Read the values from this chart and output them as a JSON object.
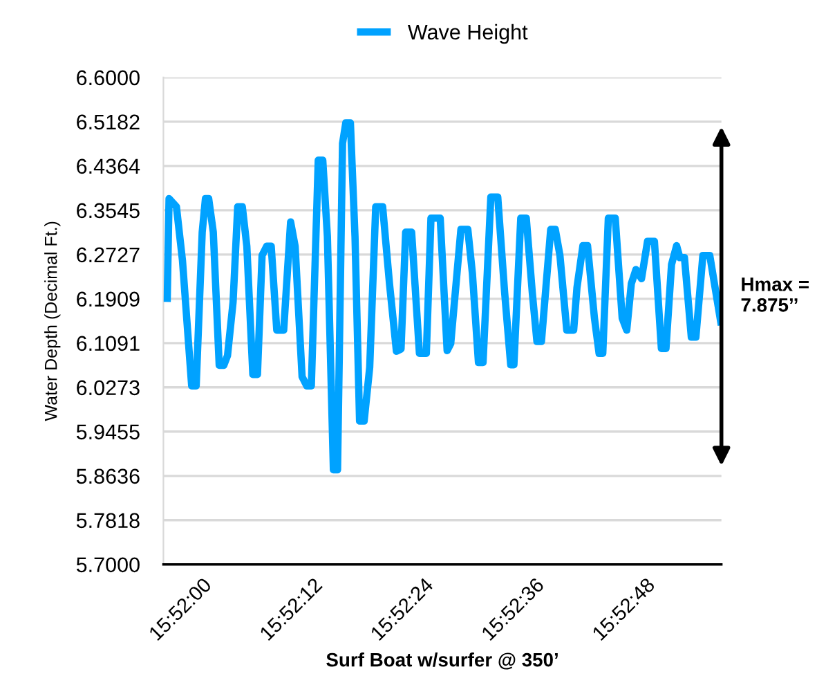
{
  "chart_data": {
    "type": "line",
    "xlabel": "Surf Boat w/surfer @ 350’",
    "ylabel": "Water Depth (Decimal Ft.)",
    "xlim": [
      15.8655,
      15.882278
    ],
    "xticks": [
      {
        "value": 15.866667,
        "label": "15:52:00"
      },
      {
        "value": 15.87,
        "label": "15:52:12"
      },
      {
        "value": 15.873333,
        "label": "15:52:24"
      },
      {
        "value": 15.876667,
        "label": "15:52:36"
      },
      {
        "value": 15.88,
        "label": "15:52:48"
      }
    ],
    "ylim": [
      5.7,
      6.6
    ],
    "yticks": [
      {
        "value": 5.7,
        "label": "5.7000"
      },
      5.7818,
      5.8636,
      5.9455,
      6.0273,
      6.1091,
      6.1909,
      6.2727,
      6.3545,
      6.4364,
      6.5182,
      {
        "value": 6.6,
        "label": "6.6000"
      }
    ],
    "grid": "y",
    "legend": "top",
    "marker": "none",
    "line_style": "solid",
    "annotations": [
      "Hmax =\n7.875’’"
    ],
    "series": [
      {
        "name": "Wave Height",
        "color": "#00a2ff",
        "x": [
          15.865614,
          15.86567,
          15.865892,
          15.866073,
          15.86635,
          15.866486,
          15.866667,
          15.866764,
          15.866861,
          15.867,
          15.867178,
          15.867317,
          15.867428,
          15.867595,
          15.867734,
          15.867873,
          15.868009,
          15.868189,
          15.868328,
          15.868467,
          15.868606,
          15.868742,
          15.868909,
          15.869117,
          15.869325,
          15.869461,
          15.86967,
          15.869809,
          15.869948,
          15.870156,
          15.870292,
          15.870431,
          15.870611,
          15.870736,
          15.870886,
          15.870984,
          15.871123,
          15.871261,
          15.871398,
          15.871536,
          15.871703,
          15.871884,
          15.872092,
          15.872298,
          15.872506,
          15.872645,
          15.872784,
          15.872964,
          15.873198,
          15.873406,
          15.873545,
          15.873823,
          15.874031,
          15.874139,
          15.874445,
          15.874653,
          15.874792,
          15.874973,
          15.875111,
          15.875345,
          15.875553,
          15.875761,
          15.875942,
          15.876039,
          15.876245,
          15.876411,
          15.876592,
          15.876731,
          15.876867,
          15.877145,
          15.877284,
          15.877423,
          15.877628,
          15.877836,
          15.877934,
          15.878114,
          15.878253,
          15.878461,
          15.8786,
          15.878711,
          15.878878,
          15.879086,
          15.879295,
          15.879431,
          15.87957,
          15.879709,
          15.879875,
          15.880056,
          15.880264,
          15.880473,
          15.880611,
          15.880778,
          15.880931,
          15.881028,
          15.881167,
          15.881373,
          15.881511,
          15.88172,
          15.881928,
          15.882275
        ],
        "values": [
          6.185,
          6.376,
          6.361,
          6.262,
          6.03,
          6.03,
          6.314,
          6.376,
          6.376,
          6.314,
          6.068,
          6.068,
          6.086,
          6.185,
          6.361,
          6.361,
          6.288,
          6.051,
          6.051,
          6.271,
          6.288,
          6.288,
          6.133,
          6.133,
          6.333,
          6.288,
          6.047,
          6.03,
          6.03,
          6.447,
          6.447,
          6.306,
          5.875,
          5.875,
          6.478,
          6.516,
          6.516,
          6.306,
          5.965,
          5.965,
          6.064,
          6.361,
          6.361,
          6.219,
          6.094,
          6.098,
          6.314,
          6.314,
          6.09,
          6.09,
          6.34,
          6.34,
          6.095,
          6.108,
          6.319,
          6.319,
          6.237,
          6.073,
          6.073,
          6.379,
          6.379,
          6.202,
          6.069,
          6.069,
          6.34,
          6.34,
          6.202,
          6.112,
          6.112,
          6.319,
          6.319,
          6.271,
          6.133,
          6.133,
          6.211,
          6.289,
          6.289,
          6.155,
          6.09,
          6.09,
          6.34,
          6.34,
          6.155,
          6.133,
          6.219,
          6.245,
          6.228,
          6.297,
          6.297,
          6.099,
          6.099,
          6.254,
          6.289,
          6.267,
          6.267,
          6.12,
          6.12,
          6.271,
          6.271,
          6.142
        ]
      }
    ]
  }
}
